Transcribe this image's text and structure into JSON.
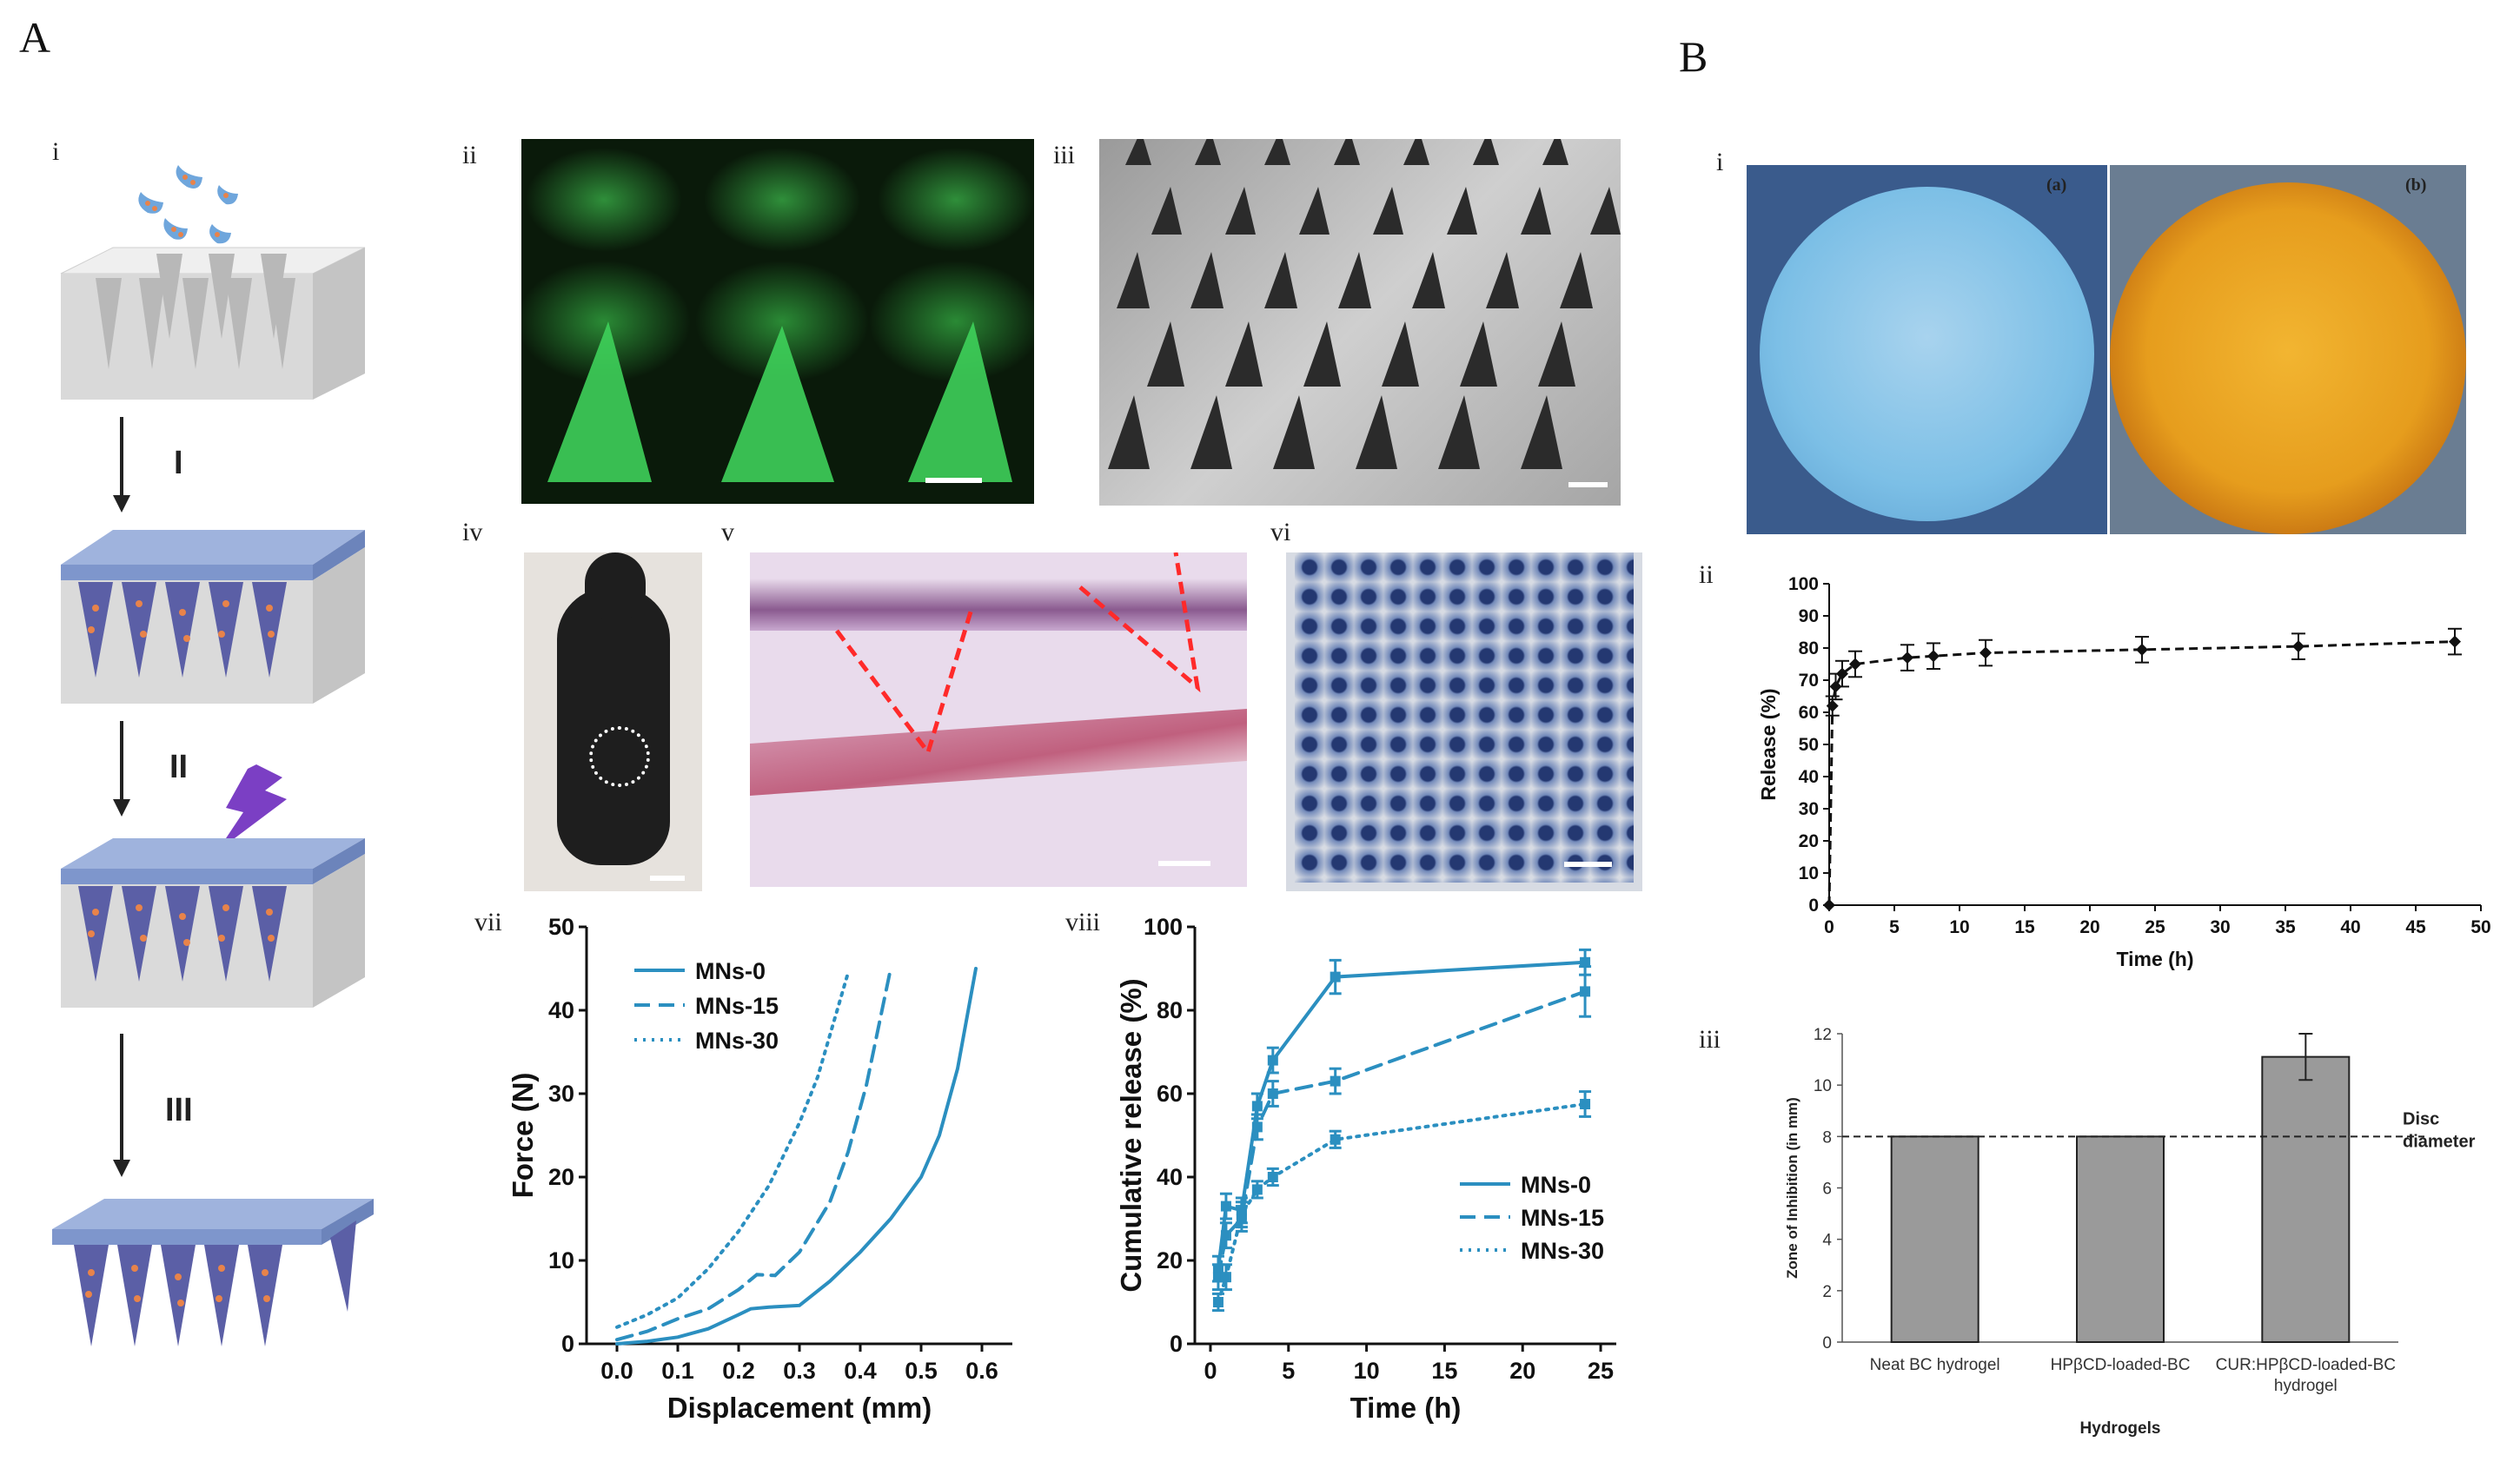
{
  "panels": {
    "A": {
      "label": "A",
      "sub": {
        "i": "i",
        "ii": "ii",
        "iii": "iii",
        "iv": "iv",
        "v": "v",
        "vi": "vi",
        "vii": "vii",
        "viii": "viii"
      },
      "steps": [
        "I",
        "II",
        "III"
      ]
    },
    "B": {
      "label": "B",
      "sub": {
        "i": "i",
        "ii": "ii",
        "iii": "iii"
      },
      "photo_labels": [
        "(a)",
        "(b)"
      ]
    }
  },
  "colors": {
    "chart_blue": "#2b8fc0",
    "bar_gray": "#9a9a9a",
    "mold_gray": "#d6d6d6",
    "patch_blue": "#9fb3dd",
    "needle_purple": "#5b5fa6",
    "drug_orange": "#e8834a",
    "bolt_purple": "#7b3fc4",
    "fluor_green": "#2fbf45"
  },
  "chart_data": [
    {
      "id": "force-displacement",
      "type": "line",
      "xlabel": "Displacement (mm)",
      "ylabel": "Force (N)",
      "xlim": [
        -0.05,
        0.65
      ],
      "ylim": [
        0,
        50
      ],
      "xticks": [
        "0.0",
        "0.1",
        "0.2",
        "0.3",
        "0.4",
        "0.5",
        "0.6"
      ],
      "yticks": [
        "0",
        "10",
        "20",
        "30",
        "40",
        "50"
      ],
      "legend_position": "top-left",
      "series": [
        {
          "name": "MNs-0",
          "style": "solid",
          "x": [
            0,
            0.05,
            0.1,
            0.15,
            0.2,
            0.22,
            0.25,
            0.3,
            0.35,
            0.4,
            0.45,
            0.5,
            0.53,
            0.56,
            0.59
          ],
          "y": [
            0,
            0.3,
            0.8,
            1.8,
            3.5,
            4.2,
            4.4,
            4.6,
            7.5,
            11,
            15,
            20,
            25,
            33,
            45
          ]
        },
        {
          "name": "MNs-15",
          "style": "dashed",
          "x": [
            0,
            0.05,
            0.1,
            0.15,
            0.2,
            0.23,
            0.26,
            0.3,
            0.35,
            0.38,
            0.41,
            0.43,
            0.45
          ],
          "y": [
            0.5,
            1.5,
            3,
            4.2,
            6.5,
            8.3,
            8.2,
            11,
            17,
            23,
            31,
            38,
            45
          ]
        },
        {
          "name": "MNs-30",
          "style": "dotted",
          "x": [
            0,
            0.05,
            0.1,
            0.15,
            0.2,
            0.25,
            0.3,
            0.33,
            0.35,
            0.37,
            0.38
          ],
          "y": [
            2,
            3.5,
            5.5,
            9,
            13.5,
            19,
            26.5,
            32,
            37,
            42,
            44.5
          ]
        }
      ]
    },
    {
      "id": "cumulative-release",
      "type": "line",
      "xlabel": "Time (h)",
      "ylabel": "Cumulative release (%)",
      "xlim": [
        -1,
        26
      ],
      "ylim": [
        0,
        100
      ],
      "xticks": [
        "0",
        "5",
        "10",
        "15",
        "20",
        "25"
      ],
      "yticks": [
        "0",
        "20",
        "40",
        "60",
        "80",
        "100"
      ],
      "legend_position": "bottom-right",
      "series": [
        {
          "name": "MNs-0",
          "style": "solid",
          "x": [
            0.5,
            1,
            2,
            3,
            4,
            8,
            24
          ],
          "y": [
            18,
            33,
            32,
            57,
            68,
            88,
            91.5
          ],
          "err": [
            3,
            3,
            3,
            3,
            3,
            4,
            3
          ]
        },
        {
          "name": "MNs-15",
          "style": "dashed",
          "x": [
            0.5,
            1,
            2,
            3,
            4,
            8,
            24
          ],
          "y": [
            16,
            26,
            30,
            52,
            60,
            63,
            84.5
          ],
          "err": [
            3,
            3,
            3,
            3,
            3,
            3,
            6
          ]
        },
        {
          "name": "MNs-30",
          "style": "dotted",
          "x": [
            0.5,
            1,
            2,
            3,
            4,
            8,
            24
          ],
          "y": [
            10,
            16,
            31,
            37,
            40,
            49,
            57.5
          ],
          "err": [
            2,
            3,
            3,
            2,
            2,
            2,
            3
          ]
        }
      ]
    },
    {
      "id": "release-percent",
      "type": "line",
      "xlabel": "Time (h)",
      "ylabel": "Release (%)",
      "xlim": [
        0,
        50
      ],
      "ylim": [
        0,
        100
      ],
      "xticks": [
        "0",
        "5",
        "10",
        "15",
        "20",
        "25",
        "30",
        "35",
        "40",
        "45",
        "50"
      ],
      "yticks": [
        "0",
        "10",
        "20",
        "30",
        "40",
        "50",
        "60",
        "70",
        "80",
        "90",
        "100"
      ],
      "series": [
        {
          "name": "",
          "style": "dashed",
          "x": [
            0,
            0.25,
            0.5,
            1,
            2,
            6,
            8,
            12,
            24,
            36,
            48
          ],
          "y": [
            0,
            62,
            68,
            72,
            75,
            77,
            77.5,
            78.5,
            79.5,
            80.5,
            82
          ],
          "err": [
            0,
            3,
            4,
            4,
            4,
            4,
            4,
            4,
            4,
            4,
            4
          ]
        }
      ]
    },
    {
      "id": "zone-of-inhibition",
      "type": "bar",
      "xlabel": "Hydrogels",
      "ylabel": "Zone of Inhibition (in mm)",
      "ylim": [
        0,
        12
      ],
      "yticks": [
        "0",
        "2",
        "4",
        "6",
        "8",
        "10",
        "12"
      ],
      "categories": [
        [
          "Neat BC hydrogel"
        ],
        [
          "HPβCD-loaded-BC"
        ],
        [
          "CUR:HPβCD-loaded-BC",
          "hydrogel"
        ]
      ],
      "values": [
        8,
        8,
        11.1
      ],
      "err": [
        0,
        0,
        0.9
      ],
      "reference_line": {
        "value": 8,
        "label": [
          "Disc",
          "diameter"
        ]
      }
    }
  ]
}
